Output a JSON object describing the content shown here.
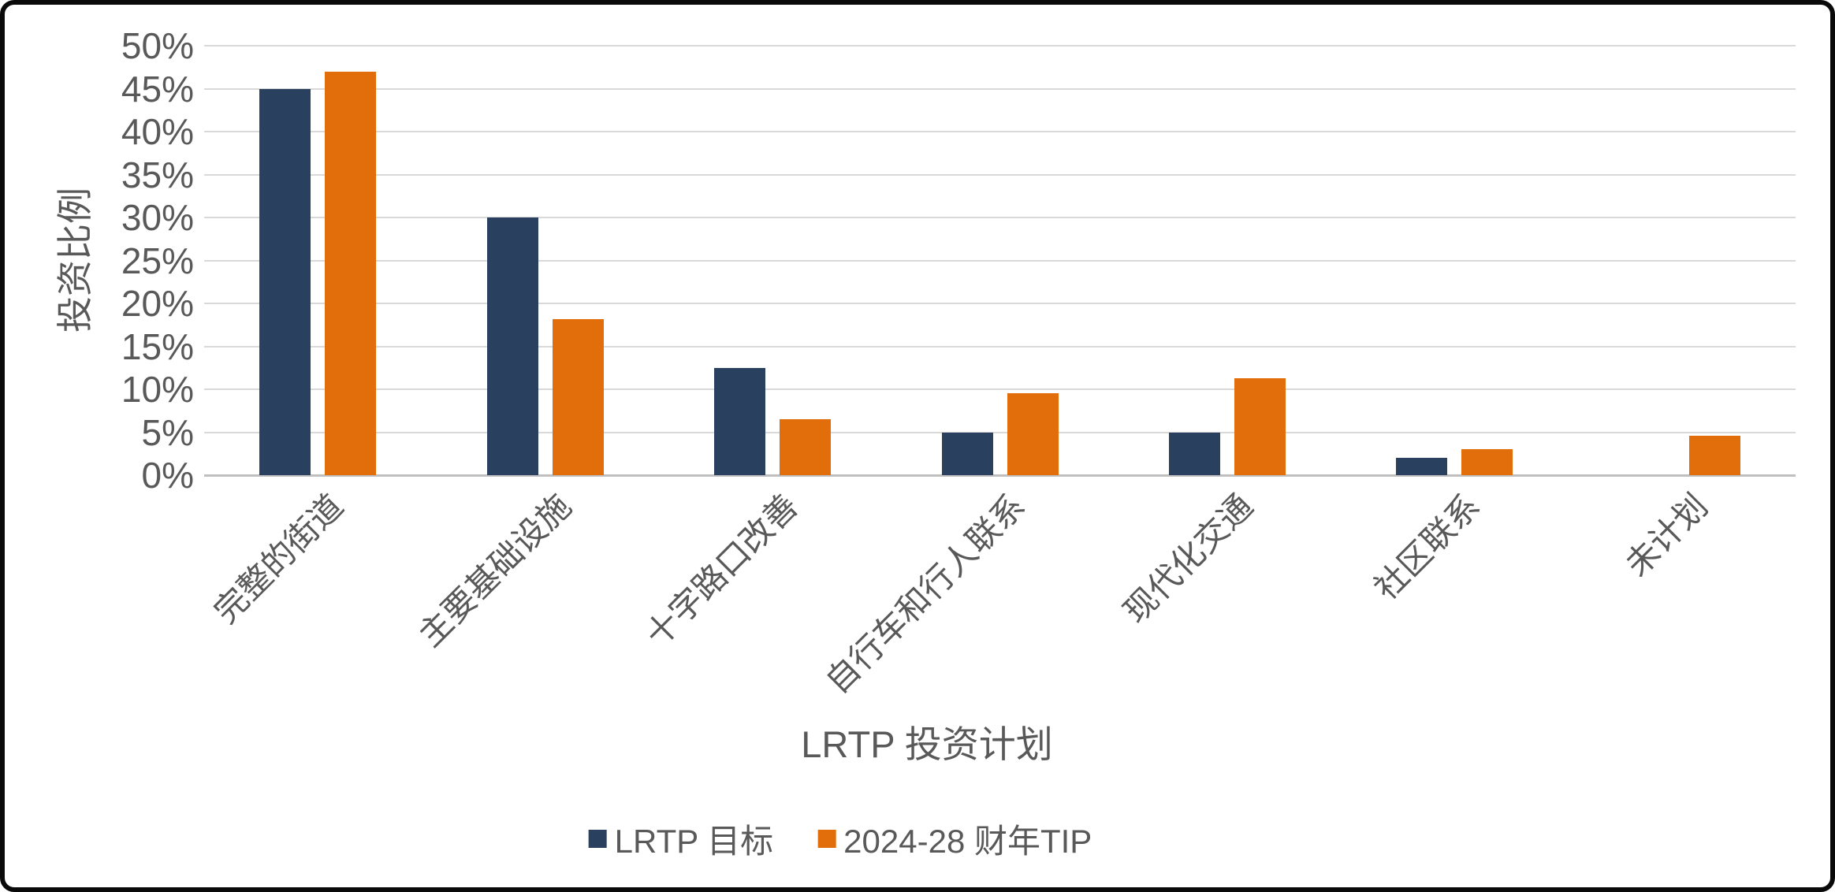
{
  "chart": {
    "y_axis": {
      "title": "投资比例",
      "tick_labels": [
        "0%",
        "5%",
        "10%",
        "15%",
        "20%",
        "25%",
        "30%",
        "35%",
        "40%",
        "45%",
        "50%"
      ]
    },
    "x_axis": {
      "title": "LRTP 投资计划"
    },
    "legend": {
      "items": [
        {
          "label": "LRTP 目标",
          "color": "#29405F"
        },
        {
          "label": "2024-28 财年TIP",
          "color": "#E26D0B"
        }
      ]
    }
  },
  "chart_data": {
    "type": "bar",
    "title": "",
    "xlabel": "LRTP 投资计划",
    "ylabel": "投资比例",
    "categories": [
      "完整的街道",
      "主要基础设施",
      "十字路口改善",
      "自行车和行人联系",
      "现代化交通",
      "社区联系",
      "未计划"
    ],
    "series": [
      {
        "name": "LRTP 目标",
        "color": "#29405F",
        "values": [
          45,
          30,
          12.5,
          5,
          5,
          2,
          0
        ]
      },
      {
        "name": "2024-28 财年TIP",
        "color": "#E26D0B",
        "values": [
          47,
          18.2,
          6.5,
          9.5,
          11.3,
          3,
          4.6
        ]
      }
    ],
    "ylim": [
      0,
      50
    ],
    "ytick_step": 5,
    "ytick_format": "percent",
    "grid": true,
    "legend_position": "bottom",
    "colors": {
      "grid": "#D9D9D9",
      "axis": "#BFBFBF",
      "text": "#595959"
    }
  }
}
